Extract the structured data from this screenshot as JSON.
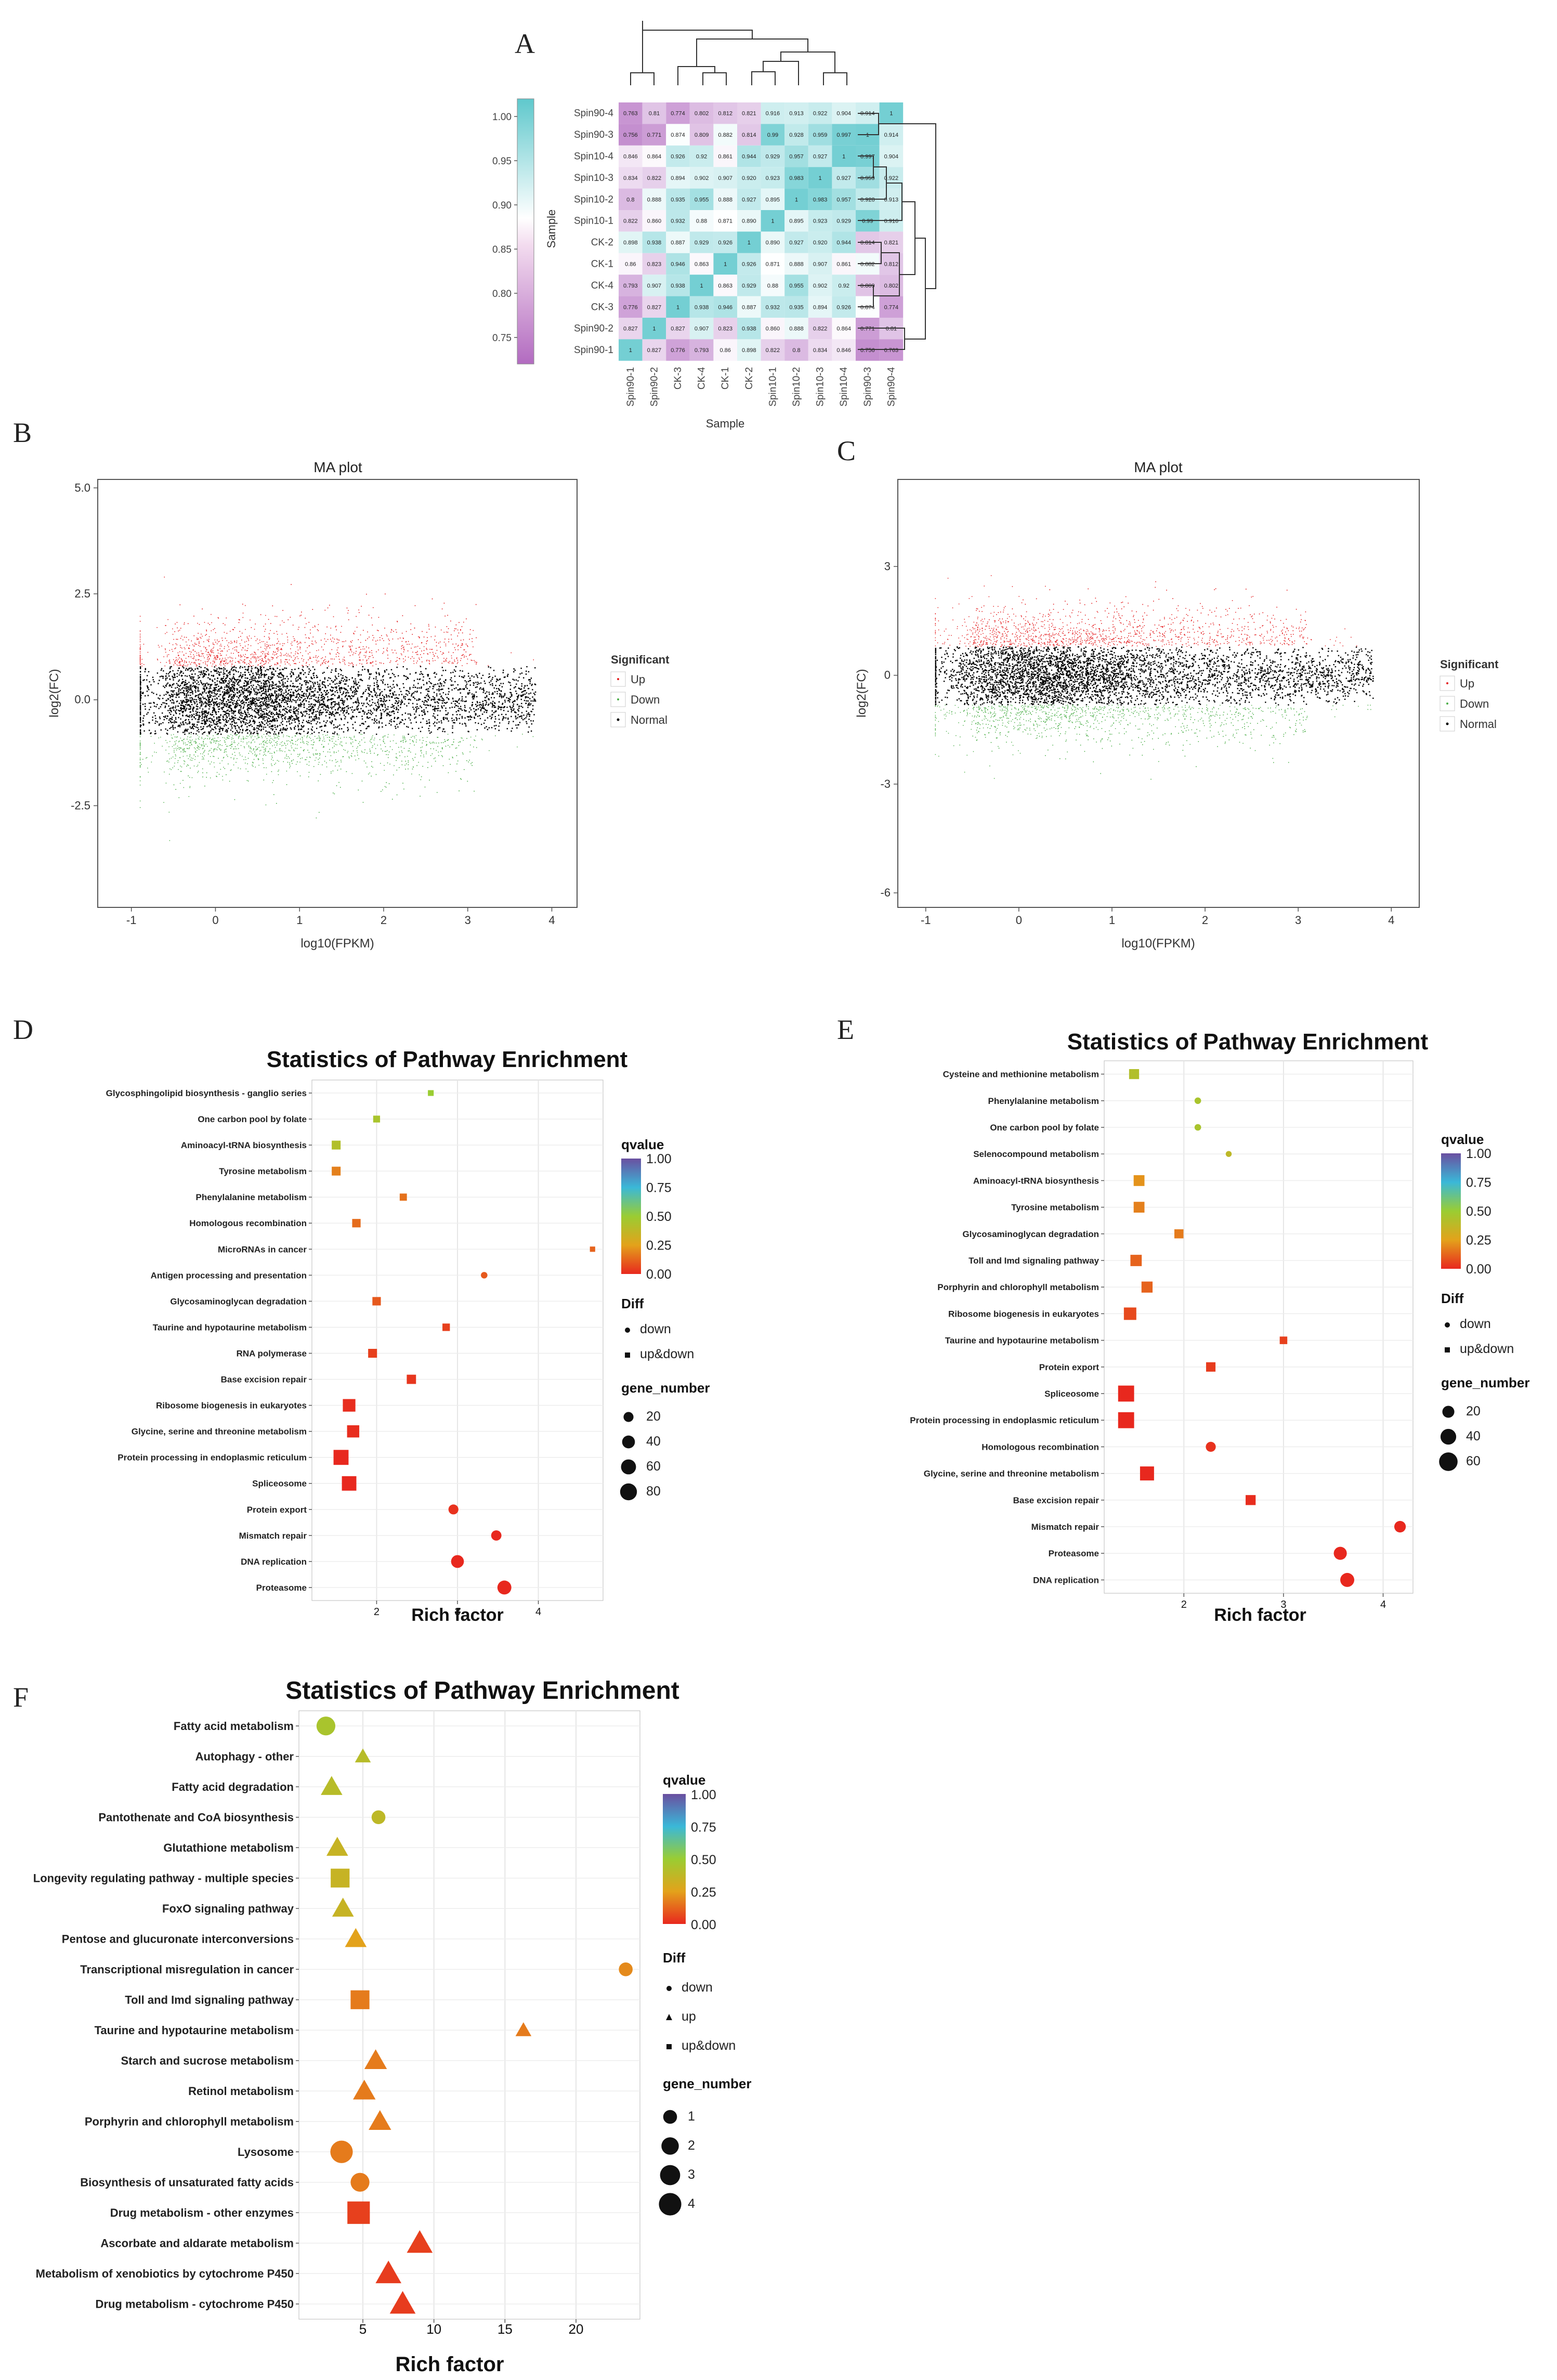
{
  "panels": {
    "A": "A",
    "B": "B",
    "C": "C",
    "D": "D",
    "E": "E",
    "F": "F"
  },
  "colors": {
    "heat_low": "#b26bc0",
    "heat_mid": "#ffffff",
    "heat_high": "#5fc8cc",
    "up": "#e41a1c",
    "down": "#4daf4a",
    "normal": "#000000",
    "qvalue_low": "#e8281e",
    "qvalue_mid": "#9acd32",
    "qvalue_high": "#6a4fa0"
  },
  "chart_data": [
    {
      "id": "A",
      "type": "heatmap",
      "title": "",
      "xlabel": "Sample",
      "ylabel": "Sample",
      "legend_title": "Sample",
      "colorbar_ticks": [
        "1.00",
        "0.95",
        "0.90",
        "0.85",
        "0.80",
        "0.75"
      ],
      "colorbar_range": [
        0.72,
        1.02
      ],
      "columns": [
        "Spin90-1",
        "Spin90-2",
        "CK-3",
        "CK-4",
        "CK-1",
        "CK-2",
        "Spin10-1",
        "Spin10-2",
        "Spin10-3",
        "Spin10-4",
        "Spin90-3",
        "Spin90-4"
      ],
      "rows": [
        "Spin90-4",
        "Spin90-3",
        "Spin10-4",
        "Spin10-3",
        "Spin10-2",
        "Spin10-1",
        "CK-2",
        "CK-1",
        "CK-4",
        "CK-3",
        "Spin90-2",
        "Spin90-1"
      ],
      "values": [
        [
          "0.763",
          "0.81",
          "0.774",
          "0.802",
          "0.812",
          "0.821",
          "0.916",
          "0.913",
          "0.922",
          "0.904",
          "0.914",
          "1"
        ],
        [
          "0.756",
          "0.771",
          "0.874",
          "0.809",
          "0.882",
          "0.814",
          "0.99",
          "0.928",
          "0.959",
          "0.997",
          "1",
          "0.914"
        ],
        [
          "0.846",
          "0.864",
          "0.926",
          "0.92",
          "0.861",
          "0.944",
          "0.929",
          "0.957",
          "0.927",
          "1",
          "0.997",
          "0.904"
        ],
        [
          "0.834",
          "0.822",
          "0.894",
          "0.902",
          "0.907",
          "0.920",
          "0.923",
          "0.983",
          "1",
          "0.927",
          "0.959",
          "0.922"
        ],
        [
          "0.8",
          "0.888",
          "0.935",
          "0.955",
          "0.888",
          "0.927",
          "0.895",
          "1",
          "0.983",
          "0.957",
          "0.928",
          "0.913"
        ],
        [
          "0.822",
          "0.860",
          "0.932",
          "0.88",
          "0.871",
          "0.890",
          "1",
          "0.895",
          "0.923",
          "0.929",
          "0.99",
          "0.916"
        ],
        [
          "0.898",
          "0.938",
          "0.887",
          "0.929",
          "0.926",
          "1",
          "0.890",
          "0.927",
          "0.920",
          "0.944",
          "0.814",
          "0.821"
        ],
        [
          "0.86",
          "0.823",
          "0.946",
          "0.863",
          "1",
          "0.926",
          "0.871",
          "0.888",
          "0.907",
          "0.861",
          "0.882",
          "0.812"
        ],
        [
          "0.793",
          "0.907",
          "0.938",
          "1",
          "0.863",
          "0.929",
          "0.88",
          "0.955",
          "0.902",
          "0.92",
          "0.809",
          "0.802"
        ],
        [
          "0.776",
          "0.827",
          "1",
          "0.938",
          "0.946",
          "0.887",
          "0.932",
          "0.935",
          "0.894",
          "0.926",
          "0.874",
          "0.774"
        ],
        [
          "0.827",
          "1",
          "0.827",
          "0.907",
          "0.823",
          "0.938",
          "0.860",
          "0.888",
          "0.822",
          "0.864",
          "0.771",
          "0.81"
        ],
        [
          "1",
          "0.827",
          "0.776",
          "0.793",
          "0.86",
          "0.898",
          "0.822",
          "0.8",
          "0.834",
          "0.846",
          "0.756",
          "0.763"
        ]
      ]
    },
    {
      "id": "B",
      "type": "scatter",
      "title": "MA plot",
      "xlabel": "log10(FPKM)",
      "ylabel": "log2(FC)",
      "xlim": [
        -1.4,
        4.3
      ],
      "ylim": [
        -4.9,
        5.2
      ],
      "xticks": [
        "-1",
        "0",
        "1",
        "2",
        "3",
        "4"
      ],
      "yticks": [
        "5.0",
        "2.5",
        "0.0",
        "-2.5"
      ],
      "ytick_values": [
        5.0,
        2.5,
        0.0,
        -2.5
      ],
      "legend_title": "Significant",
      "legend": [
        "Up",
        "Down",
        "Normal"
      ],
      "series_summary": {
        "up_threshold": 0.8,
        "down_threshold": -0.8
      }
    },
    {
      "id": "C",
      "type": "scatter",
      "title": "MA plot",
      "xlabel": "log10(FPKM)",
      "ylabel": "log2(FC)",
      "xlim": [
        -1.3,
        4.3
      ],
      "ylim": [
        -6.4,
        5.4
      ],
      "xticks": [
        "-1",
        "0",
        "1",
        "2",
        "3",
        "4"
      ],
      "yticks": [
        "3",
        "0",
        "-3",
        "-6"
      ],
      "ytick_values": [
        3,
        0,
        -3,
        -6
      ],
      "legend_title": "Significant",
      "legend": [
        "Up",
        "Down",
        "Normal"
      ],
      "series_summary": {
        "up_threshold": 0.8,
        "down_threshold": -0.8
      }
    },
    {
      "id": "D",
      "type": "scatter",
      "title": "Statistics of Pathway Enrichment",
      "xlabel": "Rich factor",
      "xlim": [
        1.2,
        4.8
      ],
      "xticks": [
        "2",
        "3",
        "4"
      ],
      "xtick_values": [
        2,
        3,
        4
      ],
      "legend_qvalue_title": "qvalue",
      "legend_qvalue_ticks": [
        "1.00",
        "0.75",
        "0.50",
        "0.25",
        "0.00"
      ],
      "legend_diff_title": "Diff",
      "legend_diff": [
        "down",
        "up&down"
      ],
      "legend_gene_title": "gene_number",
      "legend_gene": [
        "20",
        "40",
        "60",
        "80"
      ],
      "gene_range": [
        0,
        90
      ],
      "pathways": [
        {
          "name": "Glycosphingolipid biosynthesis - ganglio series",
          "rich": 2.67,
          "q": 0.5,
          "shape": "sq",
          "genes": 3
        },
        {
          "name": "One carbon pool by folate",
          "rich": 2.0,
          "q": 0.45,
          "shape": "sq",
          "genes": 6
        },
        {
          "name": "Aminoacyl-tRNA biosynthesis",
          "rich": 1.5,
          "q": 0.42,
          "shape": "sq",
          "genes": 14
        },
        {
          "name": "Tyrosine metabolism",
          "rich": 1.5,
          "q": 0.18,
          "shape": "sq",
          "genes": 14
        },
        {
          "name": "Phenylalanine metabolism",
          "rich": 2.33,
          "q": 0.15,
          "shape": "sq",
          "genes": 7
        },
        {
          "name": "Homologous recombination",
          "rich": 1.75,
          "q": 0.14,
          "shape": "sq",
          "genes": 12
        },
        {
          "name": "MicroRNAs in cancer",
          "rich": 4.67,
          "q": 0.12,
          "shape": "sq",
          "genes": 2
        },
        {
          "name": "Antigen processing and presentation",
          "rich": 3.33,
          "q": 0.1,
          "shape": "ci",
          "genes": 5
        },
        {
          "name": "Glycosaminoglycan degradation",
          "rich": 2.0,
          "q": 0.1,
          "shape": "sq",
          "genes": 12
        },
        {
          "name": "Taurine and hypotaurine metabolism",
          "rich": 2.86,
          "q": 0.05,
          "shape": "sq",
          "genes": 8
        },
        {
          "name": "RNA polymerase",
          "rich": 1.95,
          "q": 0.05,
          "shape": "sq",
          "genes": 14
        },
        {
          "name": "Base excision repair",
          "rich": 2.43,
          "q": 0.03,
          "shape": "sq",
          "genes": 16
        },
        {
          "name": "Ribosome biogenesis in eukaryotes",
          "rich": 1.66,
          "q": 0.01,
          "shape": "sq",
          "genes": 38
        },
        {
          "name": "Glycine, serine and threonine metabolism",
          "rich": 1.71,
          "q": 0.01,
          "shape": "sq",
          "genes": 35
        },
        {
          "name": "Protein processing in endoplasmic reticulum",
          "rich": 1.56,
          "q": 0.0,
          "shape": "sq",
          "genes": 60
        },
        {
          "name": "Spliceosome",
          "rich": 1.66,
          "q": 0.0,
          "shape": "sq",
          "genes": 55
        },
        {
          "name": "Protein export",
          "rich": 2.95,
          "q": 0.02,
          "shape": "ci",
          "genes": 20
        },
        {
          "name": "Mismatch repair",
          "rich": 3.48,
          "q": 0.0,
          "shape": "ci",
          "genes": 22
        },
        {
          "name": "DNA replication",
          "rich": 3.0,
          "q": 0.0,
          "shape": "ci",
          "genes": 40
        },
        {
          "name": "Proteasome",
          "rich": 3.58,
          "q": 0.0,
          "shape": "ci",
          "genes": 50
        }
      ]
    },
    {
      "id": "E",
      "type": "scatter",
      "title": "Statistics of Pathway Enrichment",
      "xlabel": "Rich factor",
      "xlim": [
        1.2,
        4.3
      ],
      "xticks": [
        "2",
        "3",
        "4"
      ],
      "xtick_values": [
        2,
        3,
        4
      ],
      "legend_qvalue_title": "qvalue",
      "legend_qvalue_ticks": [
        "1.00",
        "0.75",
        "0.50",
        "0.25",
        "0.00"
      ],
      "legend_diff_title": "Diff",
      "legend_diff": [
        "down",
        "up&down"
      ],
      "legend_gene_title": "gene_number",
      "legend_gene": [
        "20",
        "40",
        "60"
      ],
      "gene_range": [
        0,
        70
      ],
      "pathways": [
        {
          "name": "Cysteine and methionine metabolism",
          "rich": 1.5,
          "q": 0.42,
          "shape": "sq",
          "genes": 12
        },
        {
          "name": "Phenylalanine metabolism",
          "rich": 2.14,
          "q": 0.45,
          "shape": "ci",
          "genes": 3
        },
        {
          "name": "One carbon pool by folate",
          "rich": 2.14,
          "q": 0.45,
          "shape": "ci",
          "genes": 3
        },
        {
          "name": "Selenocompound metabolism",
          "rich": 2.45,
          "q": 0.38,
          "shape": "ci",
          "genes": 2
        },
        {
          "name": "Aminoacyl-tRNA biosynthesis",
          "rich": 1.55,
          "q": 0.22,
          "shape": "sq",
          "genes": 15
        },
        {
          "name": "Tyrosine metabolism",
          "rich": 1.55,
          "q": 0.18,
          "shape": "sq",
          "genes": 15
        },
        {
          "name": "Glycosaminoglycan degradation",
          "rich": 1.95,
          "q": 0.17,
          "shape": "sq",
          "genes": 9
        },
        {
          "name": "Toll and Imd signaling pathway",
          "rich": 1.52,
          "q": 0.12,
          "shape": "sq",
          "genes": 17
        },
        {
          "name": "Porphyrin and chlorophyll metabolism",
          "rich": 1.63,
          "q": 0.12,
          "shape": "sq",
          "genes": 16
        },
        {
          "name": "Ribosome biogenesis in eukaryotes",
          "rich": 1.46,
          "q": 0.07,
          "shape": "sq",
          "genes": 22
        },
        {
          "name": "Taurine and hypotaurine metabolism",
          "rich": 3.0,
          "q": 0.05,
          "shape": "sq",
          "genes": 5
        },
        {
          "name": "Protein export",
          "rich": 2.27,
          "q": 0.04,
          "shape": "sq",
          "genes": 10
        },
        {
          "name": "Spliceosome",
          "rich": 1.42,
          "q": 0.0,
          "shape": "sq",
          "genes": 42
        },
        {
          "name": "Protein processing in endoplasmic reticulum",
          "rich": 1.42,
          "q": 0.0,
          "shape": "sq",
          "genes": 42
        },
        {
          "name": "Homologous recombination",
          "rich": 2.27,
          "q": 0.02,
          "shape": "ci",
          "genes": 12
        },
        {
          "name": "Glycine, serine and threonine metabolism",
          "rich": 1.63,
          "q": 0.0,
          "shape": "sq",
          "genes": 30
        },
        {
          "name": "Base excision repair",
          "rich": 2.67,
          "q": 0.01,
          "shape": "sq",
          "genes": 12
        },
        {
          "name": "Mismatch repair",
          "rich": 4.17,
          "q": 0.0,
          "shape": "ci",
          "genes": 18
        },
        {
          "name": "Proteasome",
          "rich": 3.57,
          "q": 0.0,
          "shape": "ci",
          "genes": 25
        },
        {
          "name": "DNA replication",
          "rich": 3.64,
          "q": 0.0,
          "shape": "ci",
          "genes": 30
        }
      ]
    },
    {
      "id": "F",
      "type": "scatter",
      "title": "Statistics of Pathway Enrichment",
      "xlabel": "Rich factor",
      "xlim": [
        0.5,
        24.5
      ],
      "xticks": [
        "5",
        "10",
        "15",
        "20"
      ],
      "xtick_values": [
        5,
        10,
        15,
        20
      ],
      "legend_qvalue_title": "qvalue",
      "legend_qvalue_ticks": [
        "1.00",
        "0.75",
        "0.50",
        "0.25",
        "0.00"
      ],
      "legend_diff_title": "Diff",
      "legend_diff": [
        "down",
        "up",
        "up&down"
      ],
      "legend_gene_title": "gene_number",
      "legend_gene": [
        "1",
        "2",
        "3",
        "4"
      ],
      "gene_range": [
        0,
        4.2
      ],
      "pathways": [
        {
          "name": "Fatty acid metabolism",
          "rich": 2.4,
          "q": 0.45,
          "shape": "ci",
          "genes": 2.5
        },
        {
          "name": "Autophagy - other",
          "rich": 5.0,
          "q": 0.4,
          "shape": "tr",
          "genes": 1
        },
        {
          "name": "Fatty acid degradation",
          "rich": 2.8,
          "q": 0.4,
          "shape": "tr",
          "genes": 2.5
        },
        {
          "name": "Pantothenate and CoA biosynthesis",
          "rich": 6.1,
          "q": 0.38,
          "shape": "ci",
          "genes": 1
        },
        {
          "name": "Glutathione metabolism",
          "rich": 3.2,
          "q": 0.35,
          "shape": "tr",
          "genes": 2.5
        },
        {
          "name": "Longevity regulating pathway - multiple species",
          "rich": 3.4,
          "q": 0.35,
          "shape": "sq",
          "genes": 2.5
        },
        {
          "name": "FoxO signaling pathway",
          "rich": 3.6,
          "q": 0.35,
          "shape": "tr",
          "genes": 2.5
        },
        {
          "name": "Pentose and glucuronate interconversions",
          "rich": 4.5,
          "q": 0.25,
          "shape": "tr",
          "genes": 2.5
        },
        {
          "name": "Transcriptional misregulation in cancer",
          "rich": 23.5,
          "q": 0.2,
          "shape": "ci",
          "genes": 1
        },
        {
          "name": "Toll and Imd signaling pathway",
          "rich": 4.8,
          "q": 0.17,
          "shape": "sq",
          "genes": 2.5
        },
        {
          "name": "Taurine and hypotaurine metabolism",
          "rich": 16.3,
          "q": 0.17,
          "shape": "tr",
          "genes": 1
        },
        {
          "name": "Starch and sucrose metabolism",
          "rich": 5.9,
          "q": 0.17,
          "shape": "tr",
          "genes": 2.8
        },
        {
          "name": "Retinol metabolism",
          "rich": 5.1,
          "q": 0.17,
          "shape": "tr",
          "genes": 2.8
        },
        {
          "name": "Porphyrin and chlorophyll metabolism",
          "rich": 6.2,
          "q": 0.17,
          "shape": "tr",
          "genes": 2.8
        },
        {
          "name": "Lysosome",
          "rich": 3.5,
          "q": 0.17,
          "shape": "ci",
          "genes": 4
        },
        {
          "name": "Biosynthesis of unsaturated fatty acids",
          "rich": 4.8,
          "q": 0.17,
          "shape": "ci",
          "genes": 2.5
        },
        {
          "name": "Drug metabolism - other enzymes",
          "rich": 4.7,
          "q": 0.05,
          "shape": "sq",
          "genes": 4
        },
        {
          "name": "Ascorbate and aldarate metabolism",
          "rich": 9.0,
          "q": 0.05,
          "shape": "tr",
          "genes": 4
        },
        {
          "name": "Metabolism of xenobiotics by cytochrome P450",
          "rich": 6.8,
          "q": 0.04,
          "shape": "tr",
          "genes": 4
        },
        {
          "name": "Drug metabolism - cytochrome P450",
          "rich": 7.8,
          "q": 0.04,
          "shape": "tr",
          "genes": 4
        }
      ]
    }
  ]
}
